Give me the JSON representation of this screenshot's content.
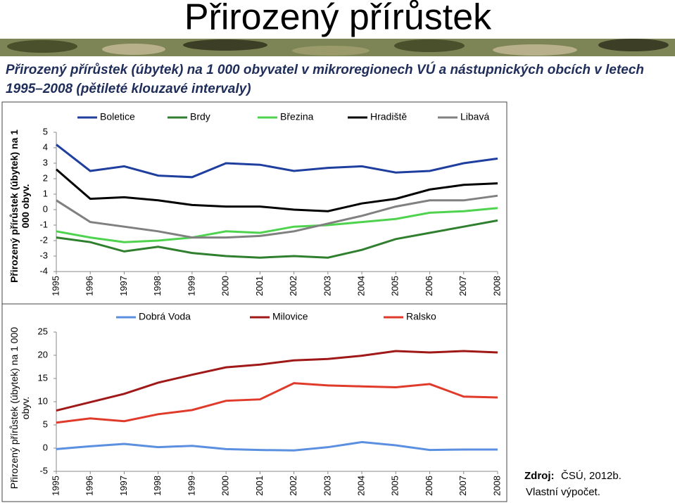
{
  "title": "Přirozený přírůstek",
  "subtitle": "Přirozený přírůstek (úbytek) na 1 000 obyvatel v mikroregionech VÚ a nástupnických obcích v letech 1995–2008 (pětileté klouzavé intervaly)",
  "source": {
    "label": "Zdroj:",
    "text": "ČSÚ, 2012b.",
    "note": "Vlastní výpočet."
  },
  "chart_data": [
    {
      "type": "line",
      "ylabel": "Přirozený přírůstek (úbytek) na 1 000 obyv.",
      "categories": [
        "1995",
        "1996",
        "1997",
        "1998",
        "1999",
        "2000",
        "2001",
        "2002",
        "2003",
        "2004",
        "2005",
        "2006",
        "2007",
        "2008"
      ],
      "ylim": [
        -4,
        5
      ],
      "yticks": [
        -4,
        -3,
        -2,
        -1,
        0,
        1,
        2,
        3,
        4,
        5
      ],
      "legend": "top",
      "series": [
        {
          "name": "Boletice",
          "color": "#1f3f9f",
          "values": [
            4.2,
            2.5,
            2.8,
            2.2,
            2.1,
            3.0,
            2.9,
            2.5,
            2.7,
            2.8,
            2.4,
            2.5,
            3.0,
            3.3
          ]
        },
        {
          "name": "Brdy",
          "color": "#2f7f2f",
          "values": [
            -1.8,
            -2.1,
            -2.7,
            -2.4,
            -2.8,
            -3.0,
            -3.1,
            -3.0,
            -3.1,
            -2.6,
            -1.9,
            -1.5,
            -1.1,
            -0.7
          ]
        },
        {
          "name": "Březina",
          "color": "#4fd34f",
          "values": [
            -1.4,
            -1.8,
            -2.1,
            -2.0,
            -1.8,
            -1.4,
            -1.5,
            -1.1,
            -1.0,
            -0.8,
            -0.6,
            -0.2,
            -0.1,
            0.1
          ]
        },
        {
          "name": "Hradiště",
          "color": "#000000",
          "values": [
            2.6,
            0.7,
            0.8,
            0.6,
            0.3,
            0.2,
            0.2,
            0.0,
            -0.1,
            0.4,
            0.7,
            1.3,
            1.6,
            1.7
          ]
        },
        {
          "name": "Libavá",
          "color": "#808080",
          "values": [
            0.6,
            -0.8,
            -1.1,
            -1.4,
            -1.8,
            -1.8,
            -1.7,
            -1.4,
            -0.9,
            -0.4,
            0.2,
            0.6,
            0.6,
            0.9
          ]
        }
      ]
    },
    {
      "type": "line",
      "ylabel": "Přirozený přírůstek (úbytek) na 1 000 obyv.",
      "categories": [
        "1995",
        "1996",
        "1997",
        "1998",
        "1999",
        "2000",
        "2001",
        "2002",
        "2003",
        "2004",
        "2005",
        "2006",
        "2007",
        "2008"
      ],
      "ylim": [
        -5,
        25
      ],
      "yticks": [
        -5,
        0,
        5,
        10,
        15,
        20,
        25
      ],
      "legend": "top",
      "series": [
        {
          "name": "Dobrá Voda",
          "color": "#5b8fe0",
          "values": [
            -0.2,
            0.4,
            0.9,
            0.2,
            0.5,
            -0.2,
            -0.4,
            -0.5,
            0.2,
            1.3,
            0.6,
            -0.4,
            -0.3,
            -0.3
          ]
        },
        {
          "name": "Milovice",
          "color": "#a01818",
          "values": [
            8.1,
            9.9,
            11.7,
            14.1,
            15.8,
            17.4,
            18.0,
            18.9,
            19.2,
            19.9,
            20.9,
            20.6,
            20.9,
            20.6
          ]
        },
        {
          "name": "Ralsko",
          "color": "#e03a2a",
          "values": [
            5.5,
            6.4,
            5.8,
            7.3,
            8.2,
            10.2,
            10.5,
            14.0,
            13.5,
            13.3,
            13.1,
            13.8,
            11.1,
            10.9
          ]
        }
      ]
    }
  ]
}
